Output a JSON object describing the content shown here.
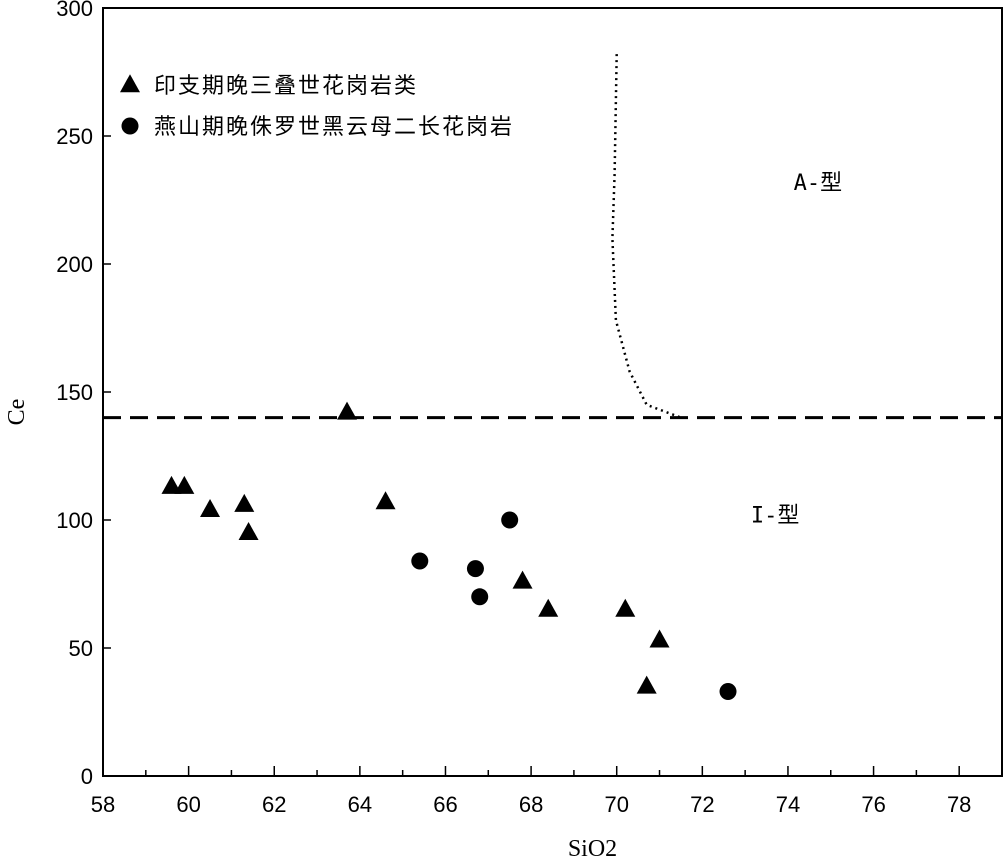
{
  "chart_data": {
    "type": "scatter",
    "title": "",
    "xlabel": "SiO2",
    "ylabel": "Ce",
    "xlim": [
      58,
      79
    ],
    "ylim": [
      0,
      300
    ],
    "xticks": [
      58,
      60,
      62,
      64,
      66,
      68,
      70,
      72,
      74,
      76,
      78
    ],
    "yticks": [
      0,
      50,
      100,
      150,
      200,
      250,
      300
    ],
    "grid": false,
    "legend_position": "top-left",
    "series": [
      {
        "name": "印支期晚三叠世花岗岩类",
        "marker": "triangle",
        "color": "#000000",
        "points": [
          [
            59.6,
            113
          ],
          [
            59.9,
            113
          ],
          [
            60.5,
            104
          ],
          [
            61.3,
            106
          ],
          [
            61.4,
            95
          ],
          [
            63.7,
            142
          ],
          [
            64.6,
            107
          ],
          [
            67.8,
            76
          ],
          [
            68.4,
            65
          ],
          [
            70.2,
            65
          ],
          [
            71.0,
            53
          ],
          [
            70.7,
            35
          ]
        ]
      },
      {
        "name": "燕山期晚侏罗世黑云母二长花岗岩",
        "marker": "circle",
        "color": "#000000",
        "points": [
          [
            67.5,
            100
          ],
          [
            65.4,
            84
          ],
          [
            66.7,
            81
          ],
          [
            66.8,
            70
          ],
          [
            72.6,
            33
          ]
        ]
      }
    ],
    "boundaries": [
      {
        "kind": "horizontal-dashed",
        "y": 140,
        "x_range": [
          58,
          79
        ]
      },
      {
        "kind": "dotted-curve",
        "points": [
          [
            70.0,
            282
          ],
          [
            69.95,
            235
          ],
          [
            69.9,
            210
          ],
          [
            69.98,
            178
          ],
          [
            70.3,
            158
          ],
          [
            70.7,
            145
          ],
          [
            71.5,
            140
          ]
        ]
      }
    ],
    "annotations": [
      {
        "text": "A-型",
        "x": 74.7,
        "y": 229
      },
      {
        "text": "I-型",
        "x": 73.7,
        "y": 99
      }
    ]
  }
}
